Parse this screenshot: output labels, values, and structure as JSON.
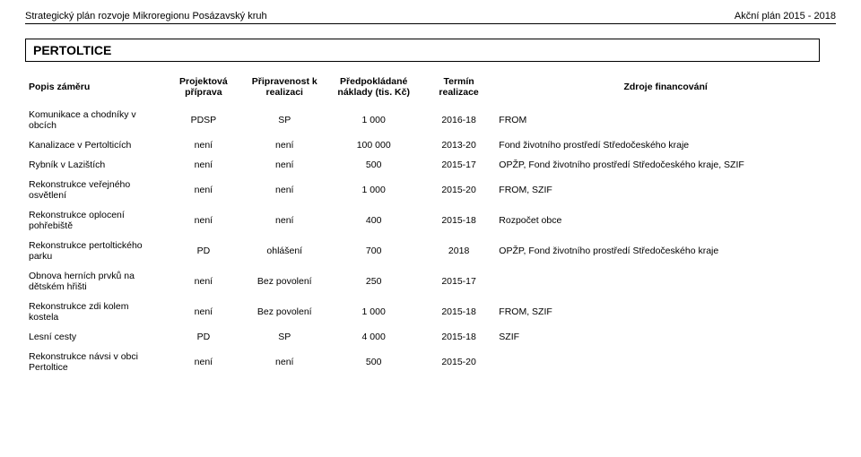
{
  "header": {
    "left": "Strategický plán rozvoje Mikroregionu Posázavský kruh",
    "right": "Akční plán 2015 - 2018"
  },
  "sectionTitle": "PERTOLTICE",
  "table": {
    "columns": [
      "Popis záměru",
      "Projektová příprava",
      "Připravenost k realizaci",
      "Předpokládané náklady (tis. Kč)",
      "Termín realizace",
      "Zdroje financování"
    ],
    "rows": [
      {
        "c0": "Komunikace a chodníky v obcích",
        "c1": "PDSP",
        "c2": "SP",
        "c3": "1 000",
        "c4": "2016-18",
        "c5": "FROM"
      },
      {
        "c0": "Kanalizace v Pertolticích",
        "c1": "není",
        "c2": "není",
        "c3": "100 000",
        "c4": "2013-20",
        "c5": "Fond životního prostředí Středočeského kraje"
      },
      {
        "c0": "Rybník v Lazištích",
        "c1": "není",
        "c2": "není",
        "c3": "500",
        "c4": "2015-17",
        "c5": "OPŽP, Fond životního prostředí Středočeského kraje, SZIF"
      },
      {
        "c0": "Rekonstrukce veřejného osvětlení",
        "c1": "není",
        "c2": "není",
        "c3": "1 000",
        "c4": "2015-20",
        "c5": "FROM, SZIF"
      },
      {
        "c0": "Rekonstrukce oplocení pohřebiště",
        "c1": "není",
        "c2": "není",
        "c3": "400",
        "c4": "2015-18",
        "c5": "Rozpočet obce"
      },
      {
        "c0": "Rekonstrukce pertoltického parku",
        "c1": "PD",
        "c2": "ohlášení",
        "c3": "700",
        "c4": "2018",
        "c5": "OPŽP, Fond životního prostředí Středočeského kraje"
      },
      {
        "c0": "Obnova herních prvků na dětském hřišti",
        "c1": "není",
        "c2": "Bez povolení",
        "c3": "250",
        "c4": "2015-17",
        "c5": ""
      },
      {
        "c0": "Rekonstrukce zdi kolem kostela",
        "c1": "není",
        "c2": "Bez povolení",
        "c3": "1 000",
        "c4": "2015-18",
        "c5": "FROM, SZIF"
      },
      {
        "c0": "Lesní cesty",
        "c1": "PD",
        "c2": "SP",
        "c3": "4 000",
        "c4": "2015-18",
        "c5": "SZIF"
      },
      {
        "c0": "Rekonstrukce návsi v obci Pertoltice",
        "c1": "není",
        "c2": "není",
        "c3": "500",
        "c4": "2015-20",
        "c5": ""
      }
    ]
  }
}
